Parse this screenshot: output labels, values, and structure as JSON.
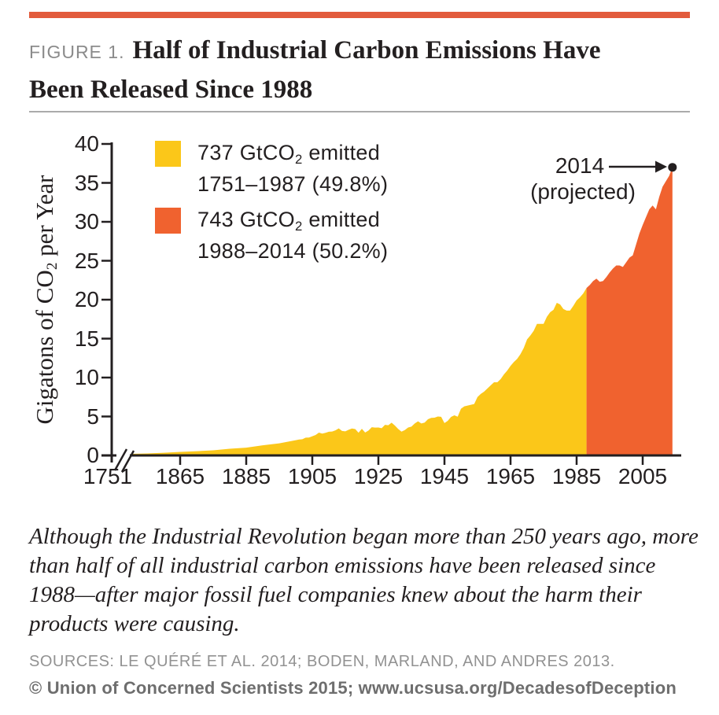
{
  "accent_color": "#E25B3C",
  "header": {
    "figure_label": "FIGURE 1.",
    "title_line1": "Half of Industrial Carbon Emissions Have",
    "title_line2": "Been Released Since 1988"
  },
  "legend": {
    "items": [
      {
        "line1_pre": "737 GtCO",
        "line1_sub": "2",
        "line1_post": " emitted",
        "line2": "1751–1987 (49.8%)",
        "swatch_color": "#FBC719"
      },
      {
        "line1_pre": "743 GtCO",
        "line1_sub": "2",
        "line1_post": " emitted",
        "line2": "1988–2014 (50.2%)",
        "swatch_color": "#F0622F"
      }
    ]
  },
  "annotation": {
    "line1": "2014",
    "line2": "(projected)"
  },
  "chart_data": {
    "type": "area",
    "title": "Half of Industrial Carbon Emissions Have Been Released Since 1988",
    "xlabel": "",
    "ylabel": {
      "pre": "Gigatons of CO",
      "sub": "2",
      "post": " per Year"
    },
    "units": "GtCO2 per year",
    "grid": false,
    "legend_position": "top-left inside plot",
    "y_axis": {
      "ticks": [
        0,
        5,
        10,
        15,
        20,
        25,
        30,
        35,
        40
      ],
      "min": 0,
      "max": 40
    },
    "x_axis": {
      "ticks": [
        {
          "year": 1751,
          "label": "1751"
        },
        {
          "year": 1865,
          "label": "1865"
        },
        {
          "year": 1885,
          "label": "1885"
        },
        {
          "year": 1905,
          "label": "1905"
        },
        {
          "year": 1925,
          "label": "1925"
        },
        {
          "year": 1945,
          "label": "1945"
        },
        {
          "year": 1965,
          "label": "1965"
        },
        {
          "year": 1985,
          "label": "1985"
        },
        {
          "year": 2005,
          "label": "2005"
        }
      ],
      "axis_break": "between 1751 and ~1850 (near-zero early values compressed)"
    },
    "series": [
      {
        "name": "737 GtCO2 emitted 1751–1987 (49.8%)",
        "period": "1751–1987",
        "total_GtCO2": 737,
        "share_percent": 49.8,
        "color": "#FBC719",
        "points": [
          [
            1850,
            0.2
          ],
          [
            1855,
            0.25
          ],
          [
            1860,
            0.34
          ],
          [
            1865,
            0.45
          ],
          [
            1870,
            0.54
          ],
          [
            1875,
            0.66
          ],
          [
            1880,
            0.86
          ],
          [
            1885,
            1.0
          ],
          [
            1890,
            1.3
          ],
          [
            1895,
            1.55
          ],
          [
            1900,
            1.96
          ],
          [
            1901,
            2.04
          ],
          [
            1902,
            2.08
          ],
          [
            1903,
            2.28
          ],
          [
            1904,
            2.3
          ],
          [
            1905,
            2.46
          ],
          [
            1906,
            2.62
          ],
          [
            1907,
            2.93
          ],
          [
            1908,
            2.8
          ],
          [
            1909,
            2.9
          ],
          [
            1910,
            3.04
          ],
          [
            1911,
            3.07
          ],
          [
            1912,
            3.22
          ],
          [
            1913,
            3.47
          ],
          [
            1914,
            3.14
          ],
          [
            1915,
            3.09
          ],
          [
            1916,
            3.29
          ],
          [
            1917,
            3.46
          ],
          [
            1918,
            3.39
          ],
          [
            1919,
            2.92
          ],
          [
            1920,
            3.42
          ],
          [
            1921,
            2.94
          ],
          [
            1922,
            3.2
          ],
          [
            1923,
            3.63
          ],
          [
            1924,
            3.57
          ],
          [
            1925,
            3.59
          ],
          [
            1926,
            3.5
          ],
          [
            1927,
            3.93
          ],
          [
            1928,
            3.88
          ],
          [
            1929,
            4.2
          ],
          [
            1930,
            3.84
          ],
          [
            1931,
            3.4
          ],
          [
            1932,
            3.05
          ],
          [
            1933,
            3.26
          ],
          [
            1934,
            3.58
          ],
          [
            1935,
            3.7
          ],
          [
            1936,
            4.1
          ],
          [
            1937,
            4.38
          ],
          [
            1938,
            4.1
          ],
          [
            1939,
            4.22
          ],
          [
            1940,
            4.65
          ],
          [
            1941,
            4.82
          ],
          [
            1942,
            4.85
          ],
          [
            1943,
            5.0
          ],
          [
            1944,
            4.96
          ],
          [
            1945,
            4.15
          ],
          [
            1946,
            4.44
          ],
          [
            1947,
            4.95
          ],
          [
            1948,
            5.15
          ],
          [
            1949,
            4.97
          ],
          [
            1950,
            6.0
          ],
          [
            1951,
            6.3
          ],
          [
            1952,
            6.4
          ],
          [
            1953,
            6.5
          ],
          [
            1954,
            6.6
          ],
          [
            1955,
            7.5
          ],
          [
            1956,
            7.9
          ],
          [
            1957,
            8.2
          ],
          [
            1958,
            8.6
          ],
          [
            1959,
            9.0
          ],
          [
            1960,
            9.4
          ],
          [
            1961,
            9.4
          ],
          [
            1962,
            9.8
          ],
          [
            1963,
            10.4
          ],
          [
            1964,
            10.9
          ],
          [
            1965,
            11.5
          ],
          [
            1966,
            12.0
          ],
          [
            1967,
            12.4
          ],
          [
            1968,
            13.0
          ],
          [
            1969,
            13.8
          ],
          [
            1970,
            14.9
          ],
          [
            1971,
            15.4
          ],
          [
            1972,
            16.0
          ],
          [
            1973,
            16.9
          ],
          [
            1974,
            16.9
          ],
          [
            1975,
            16.9
          ],
          [
            1976,
            17.8
          ],
          [
            1977,
            18.4
          ],
          [
            1978,
            18.7
          ],
          [
            1979,
            19.6
          ],
          [
            1980,
            19.4
          ],
          [
            1981,
            18.8
          ],
          [
            1982,
            18.6
          ],
          [
            1983,
            18.6
          ],
          [
            1984,
            19.2
          ],
          [
            1985,
            19.9
          ],
          [
            1986,
            20.3
          ],
          [
            1987,
            20.8
          ]
        ]
      },
      {
        "name": "743 GtCO2 emitted 1988–2014 (50.2%)",
        "period": "1988–2014",
        "total_GtCO2": 743,
        "share_percent": 50.2,
        "color": "#F0622F",
        "points": [
          [
            1988,
            21.5
          ],
          [
            1989,
            21.9
          ],
          [
            1990,
            22.4
          ],
          [
            1991,
            22.7
          ],
          [
            1992,
            22.3
          ],
          [
            1993,
            22.4
          ],
          [
            1994,
            22.9
          ],
          [
            1995,
            23.5
          ],
          [
            1996,
            24.0
          ],
          [
            1997,
            24.4
          ],
          [
            1998,
            24.4
          ],
          [
            1999,
            24.2
          ],
          [
            2000,
            24.8
          ],
          [
            2001,
            25.4
          ],
          [
            2002,
            25.7
          ],
          [
            2003,
            27.1
          ],
          [
            2004,
            28.5
          ],
          [
            2005,
            29.6
          ],
          [
            2006,
            30.6
          ],
          [
            2007,
            31.6
          ],
          [
            2008,
            32.1
          ],
          [
            2009,
            31.6
          ],
          [
            2010,
            33.2
          ],
          [
            2011,
            34.5
          ],
          [
            2012,
            35.2
          ],
          [
            2013,
            35.9
          ],
          [
            2014,
            37.0
          ]
        ]
      }
    ],
    "annotation": {
      "label": "2014 (projected)",
      "point_year": 2014,
      "point_value": 37.0
    }
  },
  "caption": {
    "text": "Although the Industrial Revolution began more than 250 years ago, more than half of all industrial carbon emissions have been released since 1988—after major fossil fuel companies knew about the harm their products were causing."
  },
  "sources": "SOURCES: LE QUÉRÉ ET AL. 2014; BODEN, MARLAND, AND ANDRES 2013.",
  "copyright": "© Union of Concerned Scientists 2015; www.ucsusa.org/DecadesofDeception"
}
